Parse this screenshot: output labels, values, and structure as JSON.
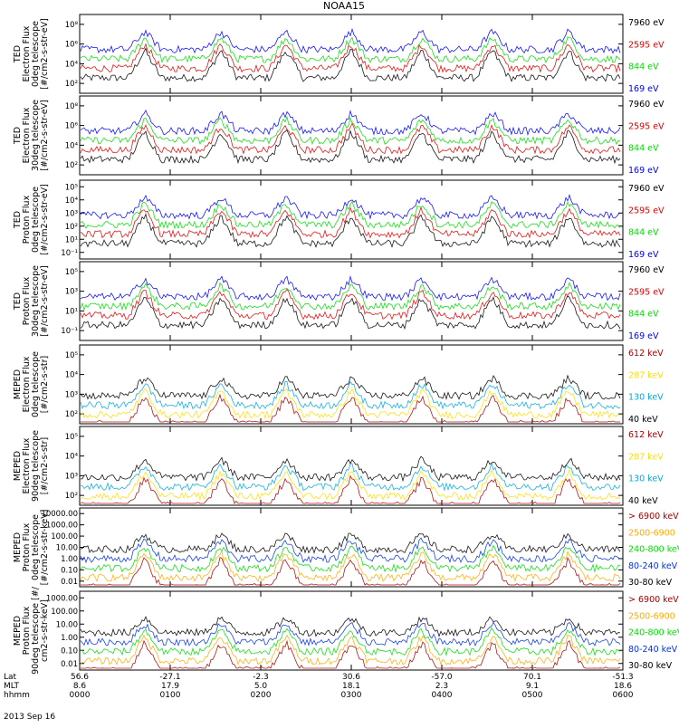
{
  "title": "NOAA15",
  "date_label": "2013 Sep 16",
  "footer": {
    "row_labels": [
      "Lat",
      "MLT",
      "hhmm"
    ],
    "columns": [
      {
        "lat": "56.6",
        "mlt": "8.6",
        "hhmm": "0000"
      },
      {
        "lat": "-27.1",
        "mlt": "17.9",
        "hhmm": "0100"
      },
      {
        "lat": "-2.3",
        "mlt": "5.0",
        "hhmm": "0200"
      },
      {
        "lat": "30.6",
        "mlt": "18.1",
        "hhmm": "0300"
      },
      {
        "lat": "-57.0",
        "mlt": "2.3",
        "hhmm": "0400"
      },
      {
        "lat": "70.1",
        "mlt": "9.1",
        "hhmm": "0500"
      },
      {
        "lat": "-51.3",
        "mlt": "18.6",
        "hhmm": "0600"
      }
    ]
  },
  "chart_data": [
    {
      "type": "line",
      "panel": 1,
      "ylabel_lines": [
        "TED",
        "Electron Flux",
        "0deg telescope",
        "[#/cm2-s-str-eV]"
      ],
      "y_scale": "log",
      "y_ticks": [
        "10²",
        "10⁴",
        "10⁶",
        "10⁸"
      ],
      "ylim": [
        1,
        100000000
      ],
      "legend": [
        "7960 eV",
        "2595 eV",
        "844 eV",
        "169 eV"
      ],
      "colors": [
        "#000000",
        "#dd0000",
        "#00dd00",
        "#0000ee"
      ]
    },
    {
      "type": "line",
      "panel": 2,
      "ylabel_lines": [
        "TED",
        "Electron Flux",
        "30deg telescope",
        "[#/cm2-s-str-eV]"
      ],
      "y_scale": "log",
      "y_ticks": [
        "10²",
        "10⁴",
        "10⁶",
        "10⁸"
      ],
      "ylim": [
        1,
        100000000
      ],
      "legend": [
        "7960 eV",
        "2595 eV",
        "844 eV",
        "169 eV"
      ],
      "colors": [
        "#000000",
        "#dd0000",
        "#00dd00",
        "#0000ee"
      ]
    },
    {
      "type": "line",
      "panel": 3,
      "ylabel_lines": [
        "TED",
        "Proton Flux",
        "0deg telescope",
        "[#/cm2-s-str-eV]"
      ],
      "y_scale": "log",
      "y_ticks": [
        "10⁻¹",
        "10¹",
        "10²",
        "10³",
        "10⁴",
        "10⁵"
      ],
      "ylim": [
        0.1,
        100000
      ],
      "legend": [
        "7960 eV",
        "2595 eV",
        "844 eV",
        "169 eV"
      ],
      "colors": [
        "#000000",
        "#dd0000",
        "#00dd00",
        "#0000ee"
      ]
    },
    {
      "type": "line",
      "panel": 4,
      "ylabel_lines": [
        "TED",
        "Proton Flux",
        "30deg telescope",
        "[#/cm2-s-str-eV]"
      ],
      "y_scale": "log",
      "y_ticks": [
        "10⁻¹",
        "10¹",
        "10³",
        "10⁵"
      ],
      "ylim": [
        0.1,
        100000
      ],
      "legend": [
        "7960 eV",
        "2595 eV",
        "844 eV",
        "169 eV"
      ],
      "colors": [
        "#000000",
        "#dd0000",
        "#00dd00",
        "#0000ee"
      ]
    },
    {
      "type": "line",
      "panel": 5,
      "ylabel_lines": [
        "MEPED",
        "Electron Flux",
        "0deg telescope",
        "[#/cm2-s-str]"
      ],
      "y_scale": "log",
      "y_ticks": [
        "10²",
        "10³",
        "10⁴",
        "10⁵"
      ],
      "ylim": [
        100,
        1000000
      ],
      "legend": [
        "612 keV",
        "287 keV",
        "130 keV",
        "40 keV"
      ],
      "colors": [
        "#aa0000",
        "#ffdd00",
        "#00aadd",
        "#000000"
      ]
    },
    {
      "type": "line",
      "panel": 6,
      "ylabel_lines": [
        "MEPED",
        "Electron Flux",
        "90deg telescope",
        "[#/cm2-s-str]"
      ],
      "y_scale": "log",
      "y_ticks": [
        "10²",
        "10³",
        "10⁴",
        "10⁵"
      ],
      "ylim": [
        100,
        1000000
      ],
      "legend": [
        "612 keV",
        "287 keV",
        "130 keV",
        "40 keV"
      ],
      "colors": [
        "#aa0000",
        "#ffdd00",
        "#00aadd",
        "#000000"
      ]
    },
    {
      "type": "line",
      "panel": 7,
      "ylabel_lines": [
        "MEPED",
        "Proton Flux",
        "0deg telescope",
        "[#/cm2-s-str-keV]"
      ],
      "y_scale": "log",
      "y_ticks": [
        "0.01",
        "0.10",
        "1.00",
        "10.00",
        "100.00",
        "1000.00",
        "10000.00"
      ],
      "ylim": [
        0.01,
        10000
      ],
      "legend": [
        "> 6900 keV",
        "2500-6900",
        "240-800 keV",
        "80-240 keV",
        "30-80 keV"
      ],
      "colors": [
        "#aa0000",
        "#ffaa00",
        "#00dd00",
        "#0033dd",
        "#000000"
      ]
    },
    {
      "type": "line",
      "panel": 8,
      "ylabel_lines": [
        "MEPED",
        "Proton Flux",
        "90deg telescope [#/",
        "cm2-s-str-keV]"
      ],
      "y_scale": "log",
      "y_ticks": [
        "0.01",
        "0.10",
        "1.00",
        "10.00",
        "100.00",
        "1000.00"
      ],
      "ylim": [
        0.01,
        1000
      ],
      "legend": [
        "> 6900 keV",
        "2500-6900",
        "240-800 keV",
        "80-240 keV",
        "30-80 keV"
      ],
      "colors": [
        "#aa0000",
        "#ffaa00",
        "#00dd00",
        "#0033dd",
        "#000000"
      ]
    }
  ]
}
